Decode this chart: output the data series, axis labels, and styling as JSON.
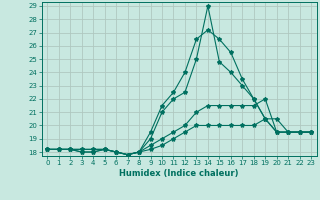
{
  "xlabel": "Humidex (Indice chaleur)",
  "xlim": [
    -0.5,
    23.5
  ],
  "ylim": [
    17.7,
    29.3
  ],
  "yticks": [
    18,
    19,
    20,
    21,
    22,
    23,
    24,
    25,
    26,
    27,
    28,
    29
  ],
  "xticks": [
    0,
    1,
    2,
    3,
    4,
    5,
    6,
    7,
    8,
    9,
    10,
    11,
    12,
    13,
    14,
    15,
    16,
    17,
    18,
    19,
    20,
    21,
    22,
    23
  ],
  "bg_color": "#c8e8e0",
  "grid_color": "#b0c8c0",
  "line_color": "#007060",
  "lines": [
    {
      "x": [
        0,
        1,
        2,
        3,
        4,
        5,
        6,
        7,
        8,
        9,
        10,
        11,
        12,
        13,
        14,
        15,
        16,
        17,
        18,
        19,
        20,
        21,
        22,
        23
      ],
      "y": [
        18.2,
        18.2,
        18.2,
        18.2,
        18.2,
        18.2,
        18.0,
        17.8,
        18.0,
        19.0,
        21.0,
        22.0,
        22.5,
        25.0,
        29.0,
        24.8,
        24.0,
        23.0,
        22.0,
        20.5,
        19.5,
        19.5,
        19.5,
        19.5
      ]
    },
    {
      "x": [
        0,
        1,
        2,
        3,
        4,
        5,
        6,
        7,
        8,
        9,
        10,
        11,
        12,
        13,
        14,
        15,
        16,
        17,
        18,
        19,
        20,
        21,
        22,
        23
      ],
      "y": [
        18.2,
        18.2,
        18.2,
        18.2,
        18.2,
        18.2,
        18.0,
        17.8,
        18.0,
        19.5,
        21.5,
        22.5,
        24.0,
        26.5,
        27.2,
        26.5,
        25.5,
        23.5,
        22.0,
        20.5,
        20.5,
        19.5,
        19.5,
        19.5
      ]
    },
    {
      "x": [
        0,
        1,
        2,
        3,
        4,
        5,
        6,
        7,
        8,
        9,
        10,
        11,
        12,
        13,
        14,
        15,
        16,
        17,
        18,
        19,
        20,
        21,
        22,
        23
      ],
      "y": [
        18.2,
        18.2,
        18.2,
        18.0,
        18.0,
        18.2,
        18.0,
        17.8,
        18.0,
        18.5,
        19.0,
        19.5,
        20.0,
        21.0,
        21.5,
        21.5,
        21.5,
        21.5,
        21.5,
        22.0,
        19.5,
        19.5,
        19.5,
        19.5
      ]
    },
    {
      "x": [
        0,
        1,
        2,
        3,
        4,
        5,
        6,
        7,
        8,
        9,
        10,
        11,
        12,
        13,
        14,
        15,
        16,
        17,
        18,
        19,
        20,
        21,
        22,
        23
      ],
      "y": [
        18.2,
        18.2,
        18.2,
        18.0,
        18.0,
        18.2,
        18.0,
        17.8,
        18.0,
        18.2,
        18.5,
        19.0,
        19.5,
        20.0,
        20.0,
        20.0,
        20.0,
        20.0,
        20.0,
        20.5,
        19.5,
        19.5,
        19.5,
        19.5
      ]
    }
  ],
  "tick_fontsize": 5.0,
  "xlabel_fontsize": 6.0
}
